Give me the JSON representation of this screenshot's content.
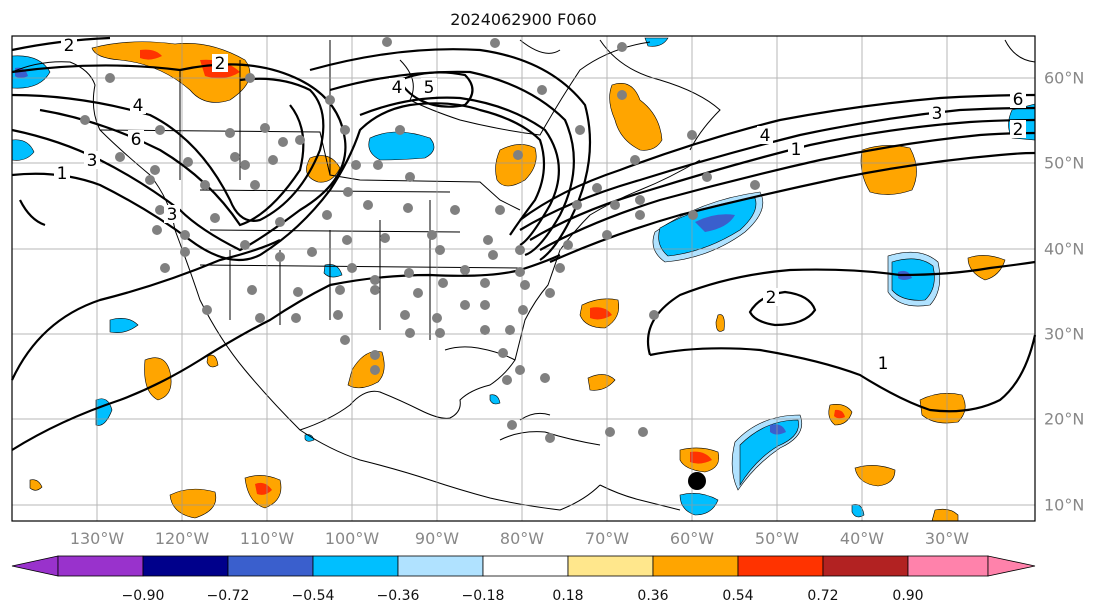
{
  "title": "2024062900 F060",
  "axes": {
    "lon_ticks": [
      "130°W",
      "120°W",
      "110°W",
      "100°W",
      "90°W",
      "80°W",
      "70°W",
      "60°W",
      "50°W",
      "40°W",
      "30°W"
    ],
    "lat_ticks": [
      "60°N",
      "50°N",
      "40°N",
      "30°N",
      "20°N",
      "10°N"
    ]
  },
  "colorbar": {
    "tick_labels": [
      "−0.90",
      "−0.72",
      "−0.54",
      "−0.36",
      "−0.18",
      "0.18",
      "0.36",
      "0.54",
      "0.72",
      "0.90"
    ],
    "colors": [
      "#9932cc",
      "#00008b",
      "#3a5fcd",
      "#00bfff",
      "#b0e2ff",
      "#ffffff",
      "#ffe78c",
      "#ffa500",
      "#ff3300",
      "#b22222",
      "#ff82ab"
    ]
  },
  "contour_labels": [
    "2",
    "2",
    "4",
    "6",
    "3",
    "1",
    "3",
    "4",
    "5",
    "4",
    "6",
    "3",
    "2",
    "1",
    "2",
    "1"
  ],
  "colors": {
    "frame": "#000000",
    "grid": "#999999",
    "station": "#808080",
    "land_line": "#000000"
  }
}
